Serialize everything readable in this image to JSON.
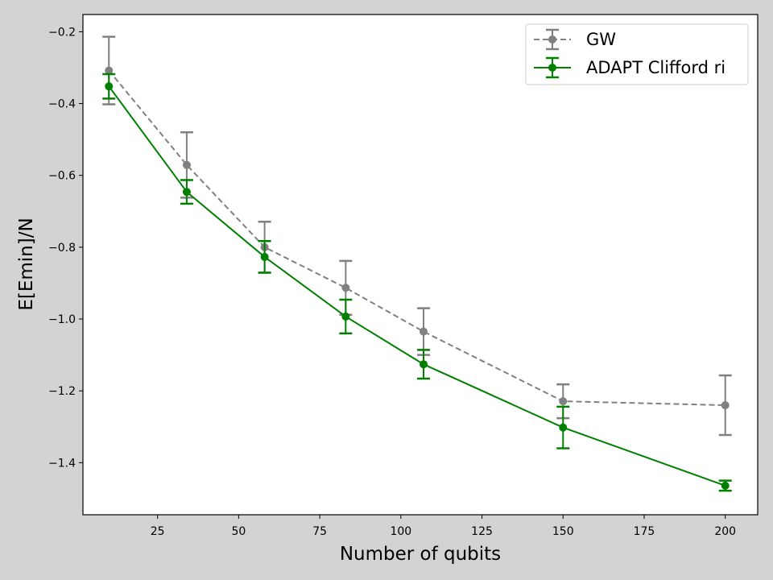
{
  "chart_data": {
    "type": "line",
    "title": "",
    "xlabel": "Number of qubits",
    "ylabel": "E[Emin]/N",
    "xlim": [
      2,
      210
    ],
    "ylim": [
      -1.545,
      -0.152
    ],
    "xticks": [
      25,
      50,
      75,
      100,
      125,
      150,
      175,
      200
    ],
    "xtick_labels": [
      "25",
      "50",
      "75",
      "100",
      "125",
      "150",
      "175",
      "200"
    ],
    "yticks": [
      -1.4,
      -1.2,
      -1.0,
      -0.8,
      -0.6,
      -0.4,
      -0.2
    ],
    "ytick_labels": [
      "−1.4",
      "−1.2",
      "−1.0",
      "−0.8",
      "−0.6",
      "−0.4",
      "−0.2"
    ],
    "grid": false,
    "legend_position": "top-right",
    "series": [
      {
        "name": "GW",
        "color": "#808080",
        "linestyle": "dashed",
        "marker": "circle",
        "x": [
          10,
          34,
          58,
          83,
          107,
          150,
          200
        ],
        "y": [
          -0.308,
          -0.571,
          -0.8,
          -0.913,
          -1.035,
          -1.229,
          -1.24
        ],
        "yerr": [
          0.094,
          0.091,
          0.071,
          0.075,
          0.065,
          0.047,
          0.083
        ]
      },
      {
        "name": "ADAPT Clifford ri",
        "color": "#008000",
        "linestyle": "solid",
        "marker": "circle",
        "x": [
          10,
          34,
          58,
          83,
          107,
          150,
          200
        ],
        "y": [
          -0.352,
          -0.646,
          -0.827,
          -0.993,
          -1.126,
          -1.302,
          -1.464
        ],
        "yerr": [
          0.034,
          0.033,
          0.044,
          0.047,
          0.04,
          0.058,
          0.014
        ]
      }
    ]
  }
}
